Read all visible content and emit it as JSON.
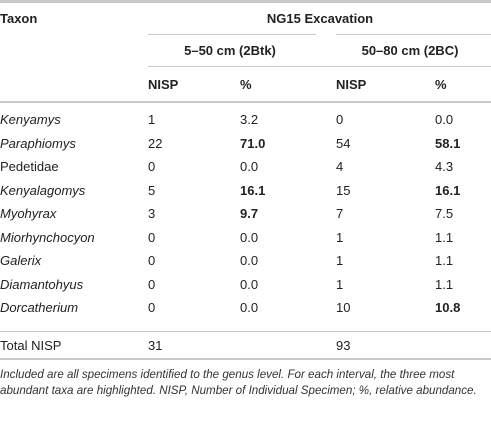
{
  "header": {
    "taxon_label": "Taxon",
    "excavation_label": "NG15 Excavation",
    "interval_1": "5–50 cm (2Btk)",
    "interval_2": "50–80 cm (2BC)",
    "nisp_col": "NISP",
    "pct_col": "%"
  },
  "rows": [
    {
      "taxon": "Kenyamys",
      "italic": true,
      "n1": "1",
      "p1": "3.2",
      "n2": "0",
      "p2": "0.0",
      "b1": false,
      "b2": false
    },
    {
      "taxon": "Paraphiomys",
      "italic": true,
      "n1": "22",
      "p1": "71.0",
      "n2": "54",
      "p2": "58.1",
      "b1": true,
      "b2": true
    },
    {
      "taxon": "Pedetidae",
      "italic": false,
      "n1": "0",
      "p1": "0.0",
      "n2": "4",
      "p2": "4.3",
      "b1": false,
      "b2": false
    },
    {
      "taxon": "Kenyalagomys",
      "italic": true,
      "n1": "5",
      "p1": "16.1",
      "n2": "15",
      "p2": "16.1",
      "b1": true,
      "b2": true
    },
    {
      "taxon": "Myohyrax",
      "italic": true,
      "n1": "3",
      "p1": "9.7",
      "n2": "7",
      "p2": "7.5",
      "b1": true,
      "b2": false
    },
    {
      "taxon": "Miorhynchocyon",
      "italic": true,
      "n1": "0",
      "p1": "0.0",
      "n2": "1",
      "p2": "1.1",
      "b1": false,
      "b2": false
    },
    {
      "taxon": "Galerix",
      "italic": true,
      "n1": "0",
      "p1": "0.0",
      "n2": "1",
      "p2": "1.1",
      "b1": false,
      "b2": false
    },
    {
      "taxon": "Diamantohyus",
      "italic": true,
      "n1": "0",
      "p1": "0.0",
      "n2": "1",
      "p2": "1.1",
      "b1": false,
      "b2": false
    },
    {
      "taxon": "Dorcatherium",
      "italic": true,
      "n1": "0",
      "p1": "0.0",
      "n2": "10",
      "p2": "10.8",
      "b1": false,
      "b2": true
    }
  ],
  "total": {
    "label": "Total NISP",
    "n1": "31",
    "n2": "93"
  },
  "footnote": "Included are all specimens identified to the genus level. For each interval, the three most abundant taxa are highlighted. NISP, Number of Individual Specimen; %, relative abundance."
}
